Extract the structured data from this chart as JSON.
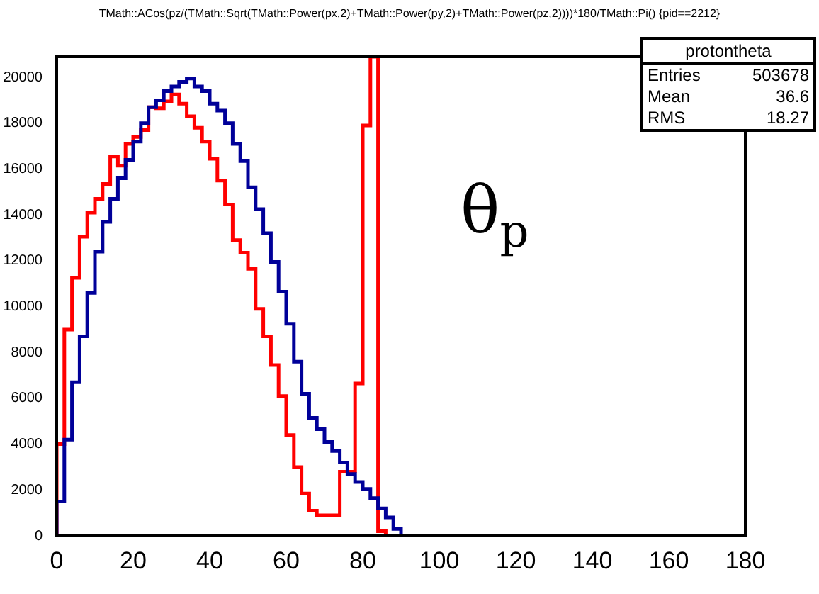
{
  "chart_data": {
    "type": "histogram",
    "title": "TMath::ACos(pz/(TMath::Sqrt(TMath::Power(px,2)+TMath::Power(py,2)+TMath::Power(pz,2))))*180/TMath::Pi() {pid==2212}",
    "bins": [
      0,
      2,
      4,
      6,
      8,
      10,
      12,
      14,
      16,
      18,
      20,
      22,
      24,
      26,
      28,
      30,
      32,
      34,
      36,
      38,
      40,
      42,
      44,
      46,
      48,
      50,
      52,
      54,
      56,
      58,
      60,
      62,
      64,
      66,
      68,
      70,
      72,
      74,
      76,
      78,
      80,
      82,
      84,
      86,
      88,
      90,
      92,
      94,
      96,
      98,
      100,
      102,
      104,
      106,
      108,
      110,
      112,
      114,
      116,
      118,
      120,
      122,
      124,
      126,
      128,
      130,
      132,
      134,
      136,
      138,
      140,
      142,
      144,
      146,
      148,
      150,
      152,
      154,
      156,
      158,
      160,
      162,
      164,
      166,
      168,
      170,
      172,
      174,
      176,
      178,
      180
    ],
    "series": [
      {
        "color": "#000099",
        "values": [
          1500,
          4200,
          6700,
          8700,
          10600,
          12400,
          13700,
          14700,
          15600,
          16400,
          17200,
          18000,
          18700,
          19000,
          19400,
          19600,
          19800,
          19950,
          19600,
          19400,
          18850,
          18550,
          18000,
          17100,
          16350,
          15200,
          14250,
          13200,
          11950,
          10650,
          9250,
          7600,
          6200,
          5150,
          4650,
          4100,
          3700,
          3200,
          2700,
          2350,
          2050,
          1650,
          1200,
          800,
          300,
          0,
          0,
          0,
          0,
          0,
          0,
          0,
          0,
          0,
          0,
          0,
          0,
          0,
          0,
          0,
          0,
          0,
          0,
          0,
          0,
          0,
          0,
          0,
          0,
          0,
          0,
          0,
          0,
          0,
          0,
          0,
          0,
          0,
          0,
          0,
          0,
          0,
          0,
          0,
          0,
          0,
          0,
          0,
          0,
          0
        ]
      },
      {
        "color": "#ff0000",
        "values": [
          4000,
          9000,
          11250,
          13050,
          14100,
          14700,
          15350,
          16550,
          16150,
          17100,
          17400,
          17700,
          18700,
          18650,
          18950,
          19250,
          18850,
          18300,
          17800,
          17200,
          16450,
          15500,
          14450,
          12900,
          12350,
          11650,
          9900,
          8700,
          7450,
          6100,
          4400,
          3000,
          1850,
          1100,
          900,
          900,
          900,
          2800,
          2800,
          6650,
          17900,
          20900,
          200,
          0,
          0,
          0,
          0,
          0,
          0,
          0,
          0,
          0,
          0,
          0,
          0,
          0,
          0,
          0,
          0,
          0,
          0,
          0,
          0,
          0,
          0,
          0,
          0,
          0,
          0,
          0,
          0,
          0,
          0,
          0,
          0,
          0,
          0,
          0,
          0,
          0,
          0,
          0,
          0,
          0,
          0,
          0,
          0,
          0,
          0,
          0
        ]
      }
    ],
    "xlim": [
      0,
      180
    ],
    "xticks": [
      0,
      20,
      40,
      60,
      80,
      100,
      120,
      140,
      160,
      180
    ],
    "ylim": [
      0,
      20900
    ],
    "yticks": [
      0,
      2000,
      4000,
      6000,
      8000,
      10000,
      12000,
      14000,
      16000,
      18000,
      20000
    ],
    "grid": false,
    "legend": false,
    "annotations": [
      "protontheta",
      "Entries",
      "503678",
      "Mean",
      "36.6",
      "RMS",
      "18.27",
      "θ$_{p}$"
    ]
  }
}
